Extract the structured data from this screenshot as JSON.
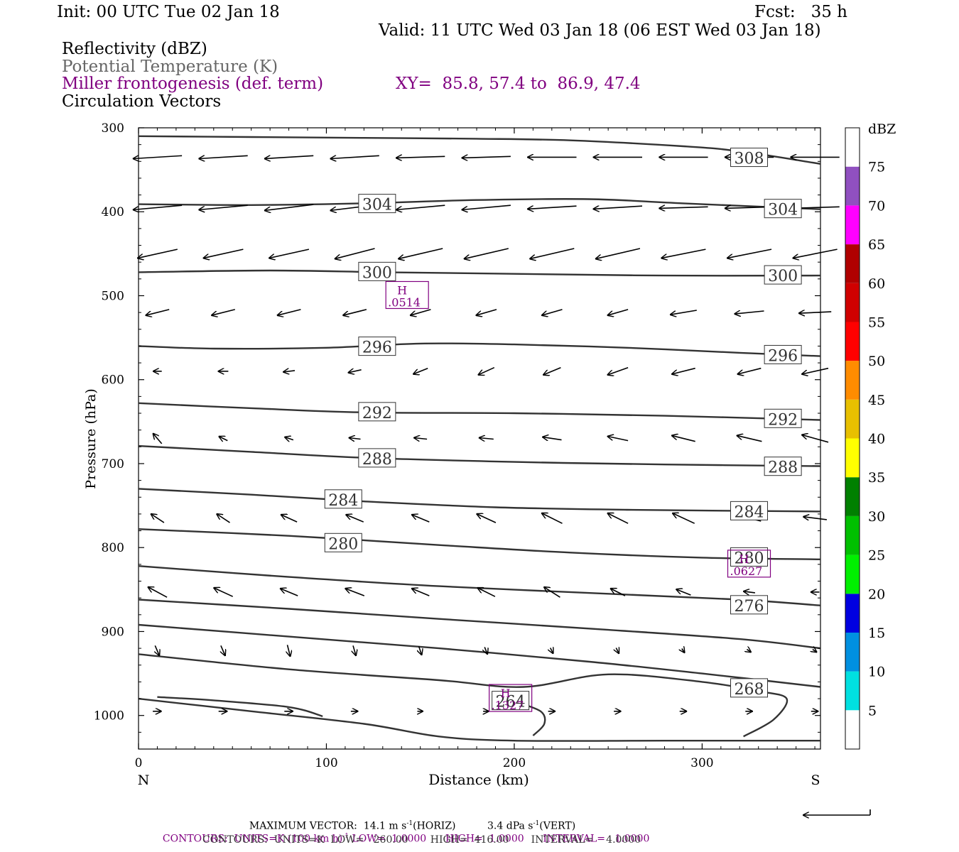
{
  "header": {
    "init": "Init: 00 UTC Tue 02 Jan 18",
    "fcst": "Fcst:   35 h",
    "valid": "Valid: 11 UTC Wed 03 Jan 18 (06 EST Wed 03 Jan 18)",
    "field1": "Reflectivity (dBZ)",
    "field2": "Potential Temperature (K)",
    "field3": "Miller frontogenesis (def. term)",
    "xy": "XY=  85.8, 57.4 to  86.9, 47.4",
    "field4": "Circulation Vectors"
  },
  "colors": {
    "theta": "#333333",
    "fronto": "#800080",
    "field2_text": "#666666"
  },
  "footer": {
    "max_vector_prefix": "MAXIMUM VECTOR:  14.1 m s",
    "max_vector_mid": "(HORIZ)          3.4 dPa s",
    "max_vector_suffix": "(VERT)",
    "contours1_a": "CONTOURS:  UNITS=K (100 km h)",
    "contours1_b": " LOW=  1.0000      HIGH=  1.0000      INTERVAL=   1.0000",
    "contours2": "CONTOURS:  UNITS=K  LOW=   260.00       HIGH=  416.00       INTERVAL=    4.0000",
    "sup": "-1"
  },
  "chart_data": {
    "type": "cross-section",
    "xlabel": "Distance (km)",
    "ylabel": "Pressure (hPa)",
    "xlim": [
      0,
      363
    ],
    "ylim": [
      1040,
      300
    ],
    "x_ticks": [
      0,
      100,
      200,
      300
    ],
    "y_ticks": [
      300,
      400,
      500,
      600,
      700,
      800,
      900,
      1000
    ],
    "end_labels": {
      "left": "N",
      "right": "S"
    },
    "colorbar": {
      "unit": "dBZ",
      "levels": [
        5,
        10,
        15,
        20,
        25,
        30,
        35,
        40,
        45,
        50,
        55,
        60,
        65,
        70,
        75
      ],
      "colors": [
        "#ffffff",
        "#00e0e0",
        "#0090e0",
        "#0000e0",
        "#00f000",
        "#00c000",
        "#008000",
        "#ffff00",
        "#e8c000",
        "#ff8c00",
        "#ff0000",
        "#d00000",
        "#b00000",
        "#ff00ff",
        "#9050c0",
        "#ffffff"
      ]
    },
    "theta_contours": [
      {
        "value": 308,
        "label": "308",
        "points": [
          [
            0,
            310
          ],
          [
            60,
            311
          ],
          [
            120,
            312
          ],
          [
            180,
            313
          ],
          [
            230,
            315
          ],
          [
            290,
            322
          ],
          [
            320,
            328
          ],
          [
            363,
            343
          ]
        ]
      },
      {
        "value": 304,
        "label": "304",
        "points": [
          [
            0,
            391
          ],
          [
            60,
            392
          ],
          [
            120,
            390
          ],
          [
            180,
            386
          ],
          [
            240,
            385
          ],
          [
            290,
            390
          ],
          [
            363,
            397
          ]
        ]
      },
      {
        "value": 300,
        "label": "300",
        "points": [
          [
            0,
            472
          ],
          [
            70,
            470
          ],
          [
            130,
            472
          ],
          [
            200,
            474
          ],
          [
            280,
            476
          ],
          [
            363,
            476
          ]
        ]
      },
      {
        "value": 296,
        "label": "296",
        "points": [
          [
            0,
            560
          ],
          [
            40,
            563
          ],
          [
            100,
            562
          ],
          [
            150,
            557
          ],
          [
            200,
            558
          ],
          [
            260,
            562
          ],
          [
            320,
            568
          ],
          [
            363,
            572
          ]
        ]
      },
      {
        "value": 292,
        "label": "292",
        "points": [
          [
            0,
            628
          ],
          [
            60,
            634
          ],
          [
            120,
            639
          ],
          [
            200,
            640
          ],
          [
            280,
            643
          ],
          [
            363,
            648
          ]
        ]
      },
      {
        "value": 288,
        "label": "288",
        "points": [
          [
            0,
            679
          ],
          [
            60,
            686
          ],
          [
            120,
            693
          ],
          [
            200,
            698
          ],
          [
            280,
            701
          ],
          [
            363,
            703
          ]
        ]
      },
      {
        "value": 284,
        "label": "284",
        "points": [
          [
            0,
            730
          ],
          [
            60,
            737
          ],
          [
            120,
            745
          ],
          [
            190,
            752
          ],
          [
            260,
            755
          ],
          [
            363,
            757
          ]
        ]
      },
      {
        "value": 280,
        "label": "280",
        "points": [
          [
            0,
            778
          ],
          [
            80,
            786
          ],
          [
            160,
            797
          ],
          [
            230,
            806
          ],
          [
            300,
            812
          ],
          [
            363,
            814
          ]
        ]
      },
      {
        "value": 276,
        "label": "276",
        "points": [
          [
            0,
            822
          ],
          [
            80,
            835
          ],
          [
            160,
            846
          ],
          [
            250,
            855
          ],
          [
            320,
            862
          ],
          [
            363,
            869
          ]
        ]
      },
      {
        "value": 272,
        "label": "",
        "points": [
          [
            0,
            862
          ],
          [
            80,
            873
          ],
          [
            160,
            885
          ],
          [
            250,
            898
          ],
          [
            320,
            909
          ],
          [
            363,
            920
          ]
        ]
      },
      {
        "value": 268,
        "label": "268",
        "points": [
          [
            0,
            892
          ],
          [
            80,
            906
          ],
          [
            160,
            920
          ],
          [
            240,
            936
          ],
          [
            300,
            950
          ],
          [
            363,
            966
          ]
        ]
      },
      {
        "value": 264,
        "label": "264",
        "points": [
          [
            0,
            927
          ],
          [
            80,
            945
          ],
          [
            160,
            958
          ],
          [
            205,
            966
          ],
          [
            250,
            951
          ],
          [
            300,
            960
          ],
          [
            330,
            971
          ],
          [
            345,
            980
          ],
          [
            338,
            1005
          ],
          [
            322,
            1025
          ]
        ]
      },
      {
        "value": 260,
        "label": "",
        "points": [
          [
            0,
            980
          ],
          [
            60,
            995
          ],
          [
            120,
            1010
          ],
          [
            160,
            1025
          ],
          [
            200,
            1030
          ],
          [
            280,
            1030
          ],
          [
            363,
            1030
          ]
        ]
      },
      {
        "value": 260,
        "label": "",
        "points": [
          [
            10,
            978
          ],
          [
            40,
            982
          ],
          [
            80,
            990
          ],
          [
            98,
            1001
          ]
        ]
      },
      {
        "value": 264,
        "label": "",
        "points": [
          [
            200,
            983
          ],
          [
            214,
            995
          ],
          [
            216,
            1010
          ],
          [
            210,
            1024
          ]
        ]
      }
    ],
    "theta_labels": [
      {
        "text": "308",
        "x": 325,
        "p": 336
      },
      {
        "text": "304",
        "x": 127,
        "p": 391
      },
      {
        "text": "304",
        "x": 343,
        "p": 397
      },
      {
        "text": "300",
        "x": 127,
        "p": 472
      },
      {
        "text": "300",
        "x": 343,
        "p": 476
      },
      {
        "text": "296",
        "x": 127,
        "p": 561
      },
      {
        "text": "296",
        "x": 343,
        "p": 571
      },
      {
        "text": "292",
        "x": 127,
        "p": 639
      },
      {
        "text": "292",
        "x": 343,
        "p": 647
      },
      {
        "text": "288",
        "x": 127,
        "p": 694
      },
      {
        "text": "288",
        "x": 343,
        "p": 704
      },
      {
        "text": "284",
        "x": 109,
        "p": 743
      },
      {
        "text": "284",
        "x": 325,
        "p": 757
      },
      {
        "text": "280",
        "x": 109,
        "p": 795
      },
      {
        "text": "280",
        "x": 325,
        "p": 812
      },
      {
        "text": "276",
        "x": 325,
        "p": 869
      },
      {
        "text": "268",
        "x": 325,
        "p": 968
      },
      {
        "text": "264",
        "x": 198,
        "p": 983
      }
    ],
    "fronto_maxima": [
      {
        "label": "H",
        "value": ".0514",
        "x": 143,
        "p": 500
      },
      {
        "label": "H",
        "value": ".0627",
        "x": 325,
        "p": 820
      },
      {
        "label": "H",
        "value": ".1327",
        "x": 198,
        "p": 980
      }
    ],
    "vectors": {
      "x_positions": [
        10,
        45,
        80,
        115,
        150,
        185,
        220,
        255,
        290,
        325,
        360
      ],
      "rows": [
        {
          "p": 335,
          "u": [
            -33,
            -33,
            -33,
            -33,
            -33,
            -33,
            -33,
            -33,
            -33,
            -33,
            -33
          ],
          "w": [
            2,
            2,
            2,
            2,
            1,
            1,
            0,
            0,
            0,
            0,
            0
          ]
        },
        {
          "p": 395,
          "u": [
            -33,
            -33,
            -33,
            -33,
            -33,
            -33,
            -33,
            -33,
            -33,
            -33,
            -33
          ],
          "w": [
            3,
            3,
            4,
            4,
            3,
            3,
            2,
            2,
            1,
            1,
            1
          ]
        },
        {
          "p": 450,
          "u": [
            -27,
            -27,
            -27,
            -27,
            -30,
            -30,
            -30,
            -30,
            -30,
            -30,
            -30
          ],
          "w": [
            6,
            6,
            6,
            7,
            7,
            7,
            7,
            7,
            6,
            6,
            6
          ]
        },
        {
          "p": 520,
          "u": [
            -16,
            -16,
            -16,
            -16,
            -14,
            -14,
            -14,
            -14,
            -18,
            -20,
            -22
          ],
          "w": [
            4,
            4,
            4,
            4,
            4,
            4,
            4,
            4,
            3,
            2,
            1
          ]
        },
        {
          "p": 590,
          "u": [
            -6,
            -7,
            -8,
            -9,
            -10,
            -11,
            -12,
            -14,
            -16,
            -16,
            -18
          ],
          "w": [
            0,
            0,
            1,
            2,
            4,
            5,
            5,
            5,
            4,
            4,
            4
          ]
        },
        {
          "p": 670,
          "u": [
            -6,
            -6,
            -6,
            -8,
            -9,
            -10,
            -13,
            -14,
            -16,
            -17,
            -18
          ],
          "w": [
            -7,
            -3,
            -2,
            -1,
            -1,
            -1,
            -2,
            -3,
            -4,
            -4,
            -5
          ]
        },
        {
          "p": 765,
          "u": [
            -9,
            -9,
            -11,
            -12,
            -12,
            -13,
            -14,
            -14,
            -15,
            -16,
            -16
          ],
          "w": [
            -6,
            -6,
            -5,
            -5,
            -5,
            -6,
            -7,
            -7,
            -7,
            -4,
            -2
          ]
        },
        {
          "p": 853,
          "u": [
            -13,
            -13,
            -12,
            -13,
            -12,
            -12,
            -11,
            -10,
            -10,
            -8,
            -6
          ],
          "w": [
            -7,
            -6,
            -5,
            -5,
            -5,
            -6,
            -7,
            -5,
            -4,
            -1,
            0
          ]
        },
        {
          "p": 923,
          "u": [
            3,
            3,
            2,
            2,
            2,
            2,
            2,
            2,
            2,
            3,
            3
          ],
          "w": [
            7,
            7,
            8,
            7,
            6,
            5,
            4,
            4,
            3,
            2,
            2
          ]
        },
        {
          "p": 995,
          "u": [
            6,
            6,
            6,
            5,
            4,
            4,
            5,
            5,
            5,
            5,
            5
          ],
          "w": [
            0,
            0,
            0,
            0,
            0,
            0,
            0,
            0,
            0,
            0,
            0
          ]
        }
      ]
    }
  }
}
